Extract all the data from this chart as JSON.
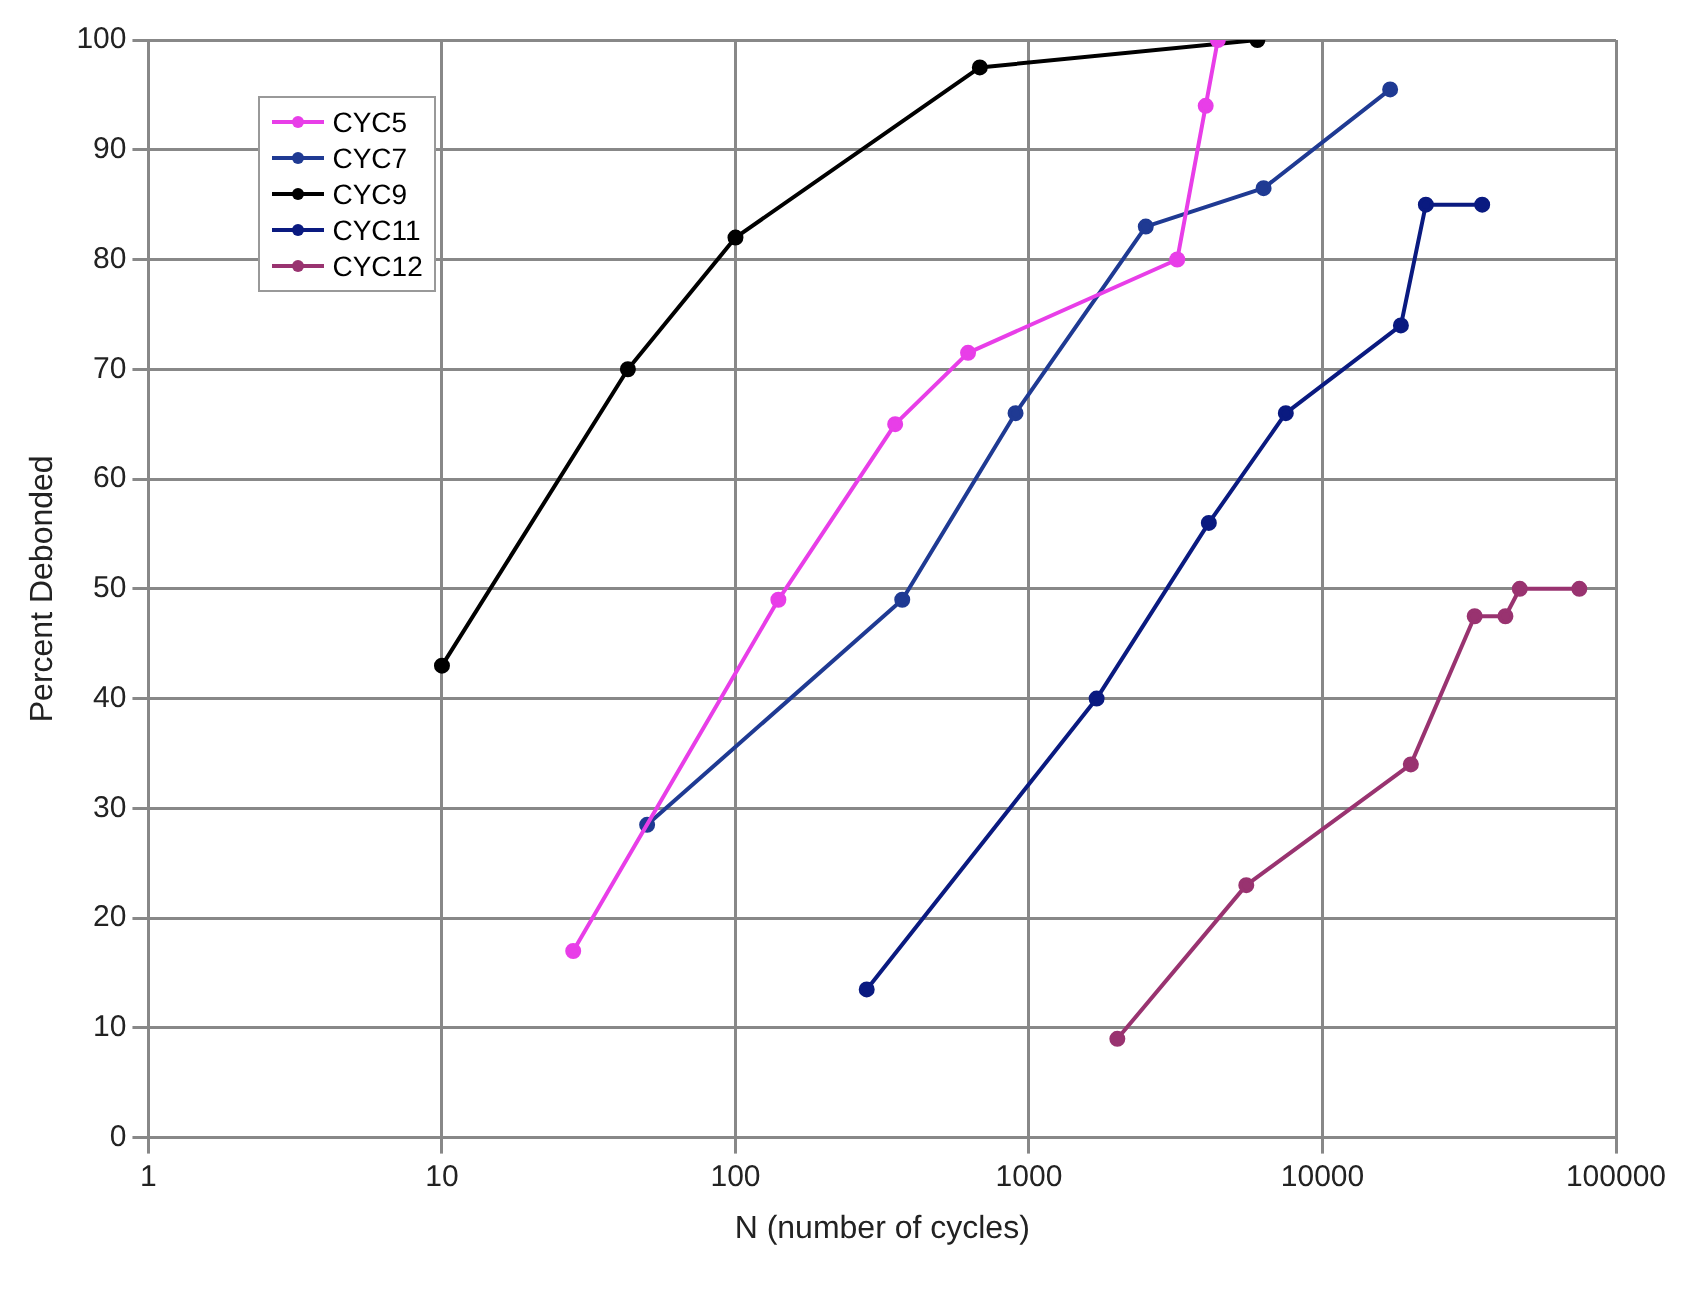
{
  "chart_data": {
    "type": "line",
    "xlabel": "N (number of cycles)",
    "ylabel": "Percent Debonded",
    "log": "x",
    "xlim": [
      1,
      100000
    ],
    "xticks": [
      1,
      10,
      100,
      1000,
      10000,
      100000
    ],
    "ylim": [
      0,
      100
    ],
    "yticks": [
      0,
      10,
      20,
      30,
      40,
      50,
      60,
      70,
      80,
      90,
      100
    ],
    "grid": true,
    "legend": "top left",
    "marker": "circle",
    "line_style": "solid",
    "series": [
      {
        "name": "CYC5",
        "color": "#e83ee8",
        "x": [
          28,
          140,
          350,
          620,
          3200,
          4000,
          4400
        ],
        "values": [
          17,
          49,
          65,
          71.5,
          80,
          94,
          100
        ]
      },
      {
        "name": "CYC7",
        "color": "#1f3a93",
        "x": [
          50,
          370,
          900,
          2500,
          6300,
          17000
        ],
        "values": [
          28.5,
          49,
          66,
          83,
          86.5,
          95.5
        ]
      },
      {
        "name": "CYC9",
        "color": "#000000",
        "x": [
          10,
          43,
          100,
          680,
          6000
        ],
        "values": [
          43,
          70,
          82,
          97.5,
          100
        ]
      },
      {
        "name": "CYC11",
        "color": "#0a1a80",
        "x": [
          280,
          1700,
          4100,
          7500,
          18500,
          22500,
          35000
        ],
        "values": [
          13.5,
          40,
          56,
          66,
          74,
          85,
          85
        ]
      },
      {
        "name": "CYC12",
        "color": "#993370",
        "x": [
          2000,
          5500,
          20000,
          33000,
          42000,
          47000,
          75000
        ],
        "values": [
          9,
          23,
          34,
          47.5,
          47.5,
          50,
          50
        ]
      }
    ]
  }
}
